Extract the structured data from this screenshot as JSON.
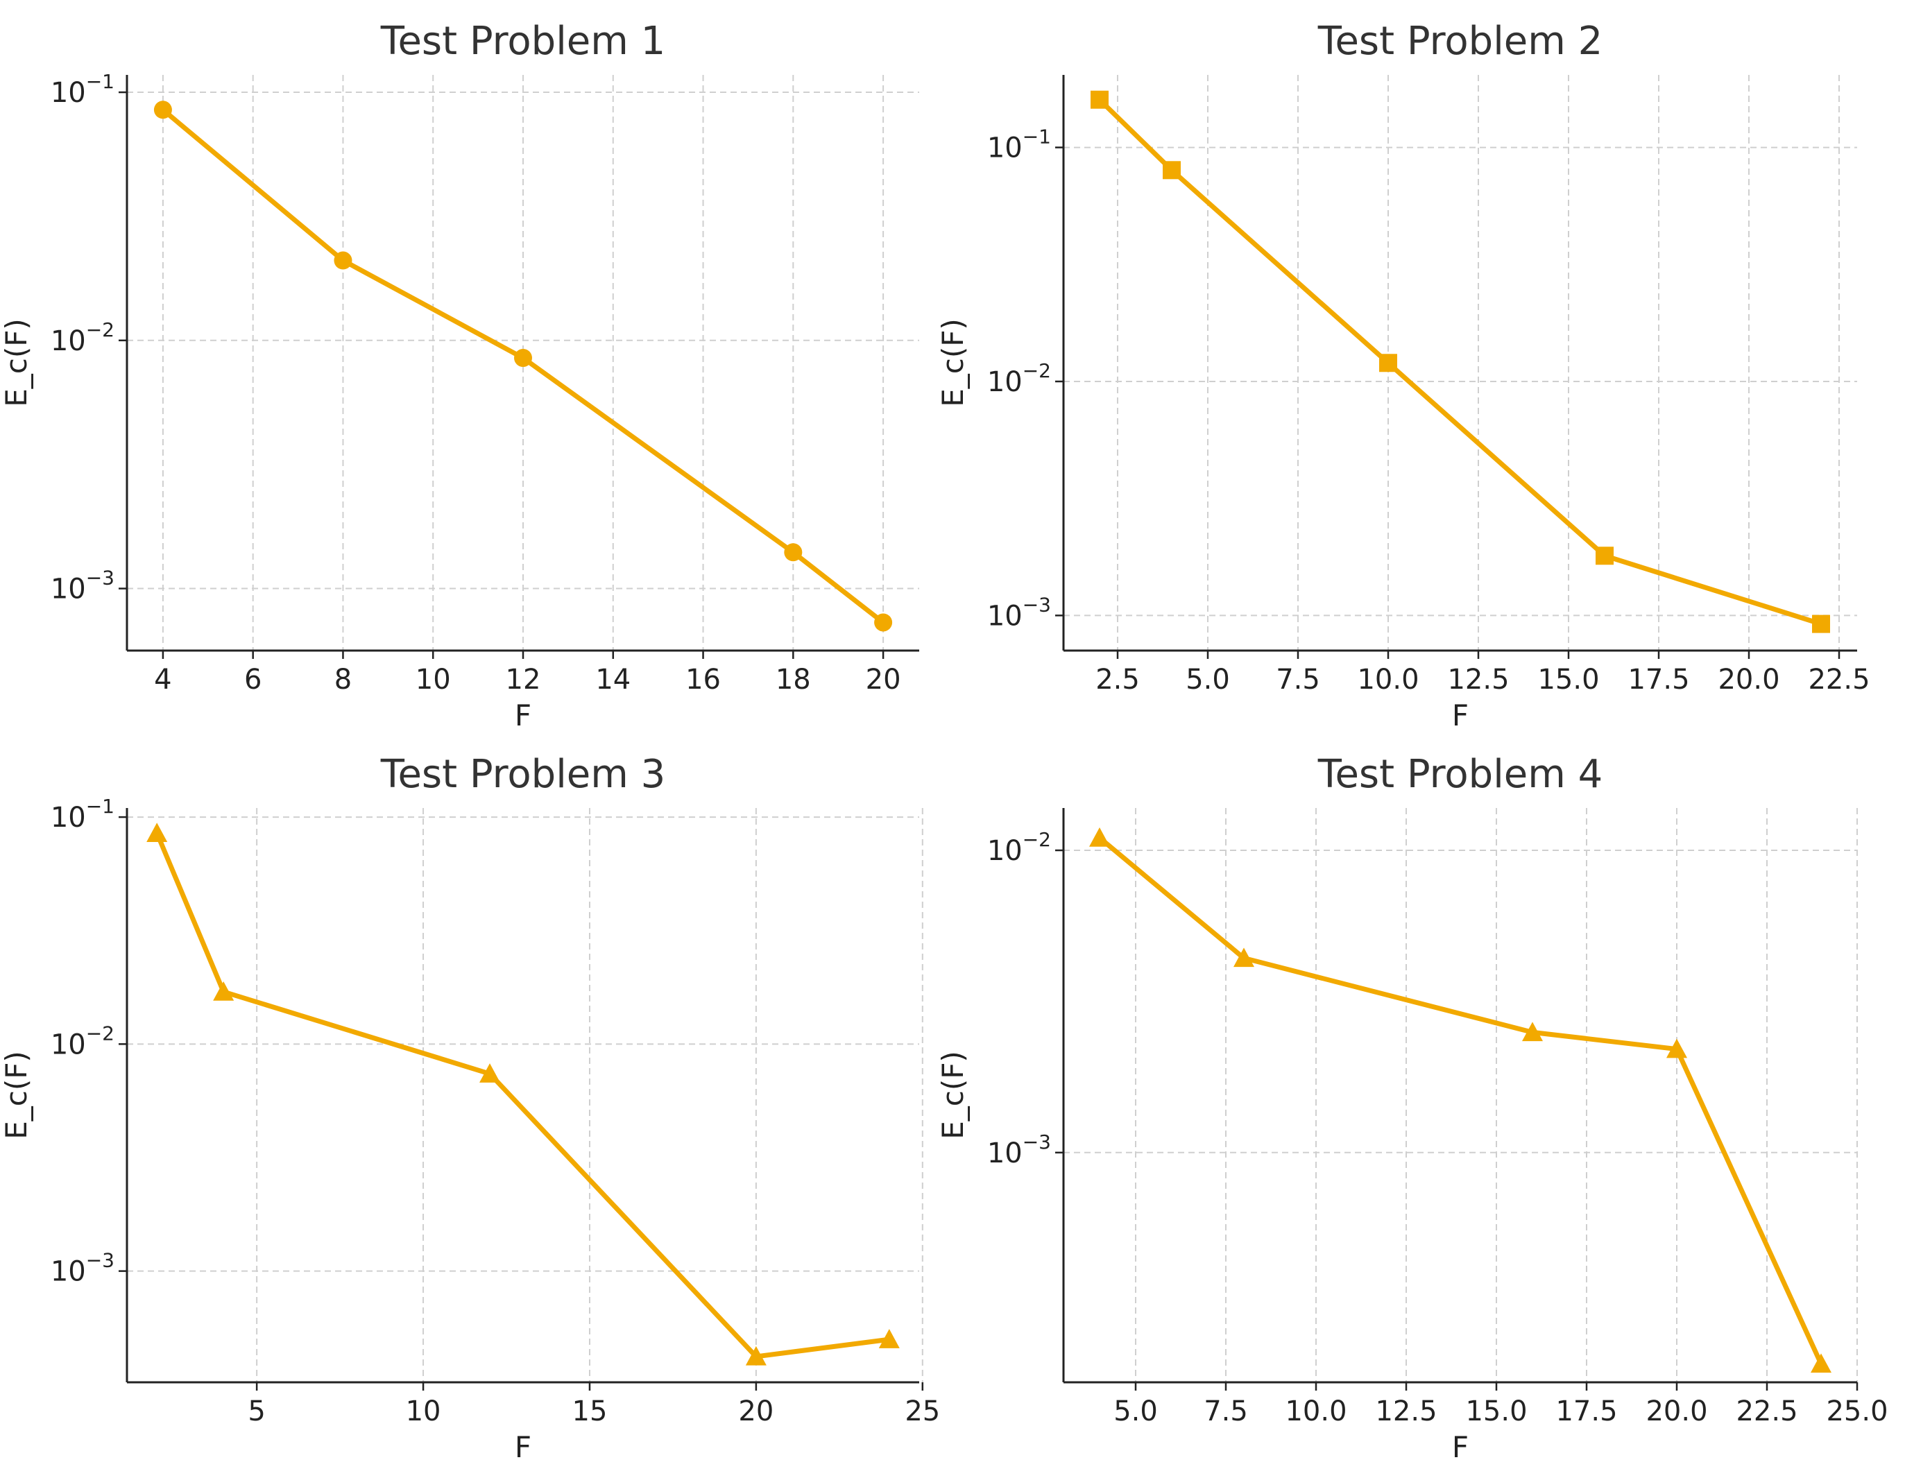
{
  "figure": {
    "line_color": "#f2a900"
  },
  "chart_data": [
    {
      "type": "line",
      "title": "Test Problem 1",
      "xlabel": "F",
      "ylabel": "E_c(F)",
      "yscale": "log",
      "marker": "circle",
      "x": [
        4,
        8,
        12,
        18,
        20
      ],
      "y": [
        0.085,
        0.021,
        0.0085,
        0.0014,
        0.00073
      ],
      "xlim": [
        3.2,
        20.8
      ],
      "ylim_exp": [
        -3.25,
        -0.93
      ],
      "xticks": [
        4,
        6,
        8,
        10,
        12,
        14,
        16,
        18,
        20
      ],
      "xtick_labels": [
        "4",
        "6",
        "8",
        "10",
        "12",
        "14",
        "16",
        "18",
        "20"
      ],
      "yticks_exp": [
        -1,
        -2,
        -3
      ],
      "ytick_labels": [
        "10",
        "10",
        "10"
      ],
      "ytick_exponents": [
        "−1",
        "−2",
        "−3"
      ],
      "grid": true
    },
    {
      "type": "line",
      "title": "Test Problem 2",
      "xlabel": "F",
      "ylabel": "E_c(F)",
      "yscale": "log",
      "marker": "square",
      "x": [
        2,
        4,
        10,
        16,
        22
      ],
      "y": [
        0.16,
        0.08,
        0.012,
        0.0018,
        0.00092
      ],
      "xlim": [
        1.0,
        23.0
      ],
      "ylim_exp": [
        -3.15,
        -0.69
      ],
      "xticks": [
        2.5,
        5.0,
        7.5,
        10.0,
        12.5,
        15.0,
        17.5,
        20.0,
        22.5
      ],
      "xtick_labels": [
        "2.5",
        "5.0",
        "7.5",
        "10.0",
        "12.5",
        "15.0",
        "17.5",
        "20.0",
        "22.5"
      ],
      "yticks_exp": [
        -1,
        -2,
        -3
      ],
      "ytick_labels": [
        "10",
        "10",
        "10"
      ],
      "ytick_exponents": [
        "−1",
        "−2",
        "−3"
      ],
      "grid": true
    },
    {
      "type": "line",
      "title": "Test Problem 3",
      "xlabel": "F",
      "ylabel": "E_c(F)",
      "yscale": "log",
      "marker": "triangle",
      "x": [
        2,
        4,
        12,
        20,
        24
      ],
      "y": [
        0.085,
        0.017,
        0.0074,
        0.00042,
        0.0005
      ],
      "xlim": [
        1.1,
        24.9
      ],
      "ylim_exp": [
        -3.49,
        -0.96
      ],
      "xticks": [
        5,
        10,
        15,
        20,
        25
      ],
      "xtick_labels": [
        "5",
        "10",
        "15",
        "20",
        "25"
      ],
      "yticks_exp": [
        -1,
        -2,
        -3
      ],
      "ytick_labels": [
        "10",
        "10",
        "10"
      ],
      "ytick_exponents": [
        "−1",
        "−2",
        "−3"
      ],
      "grid": true
    },
    {
      "type": "line",
      "title": "Test Problem 4",
      "xlabel": "F",
      "ylabel": "E_c(F)",
      "yscale": "log",
      "marker": "triangle",
      "x": [
        4,
        8,
        16,
        20,
        24
      ],
      "y": [
        0.011,
        0.0044,
        0.0025,
        0.0022,
        0.0002
      ],
      "xlim": [
        3.0,
        25.0
      ],
      "ylim_exp": [
        -3.76,
        -1.86
      ],
      "xticks": [
        5.0,
        7.5,
        10.0,
        12.5,
        15.0,
        17.5,
        20.0,
        22.5,
        25.0
      ],
      "xtick_labels": [
        "5.0",
        "7.5",
        "10.0",
        "12.5",
        "15.0",
        "17.5",
        "20.0",
        "22.5",
        "25.0"
      ],
      "yticks_exp": [
        -2,
        -3
      ],
      "ytick_labels": [
        "10",
        "10"
      ],
      "ytick_exponents": [
        "−2",
        "−3"
      ],
      "grid": true
    }
  ]
}
